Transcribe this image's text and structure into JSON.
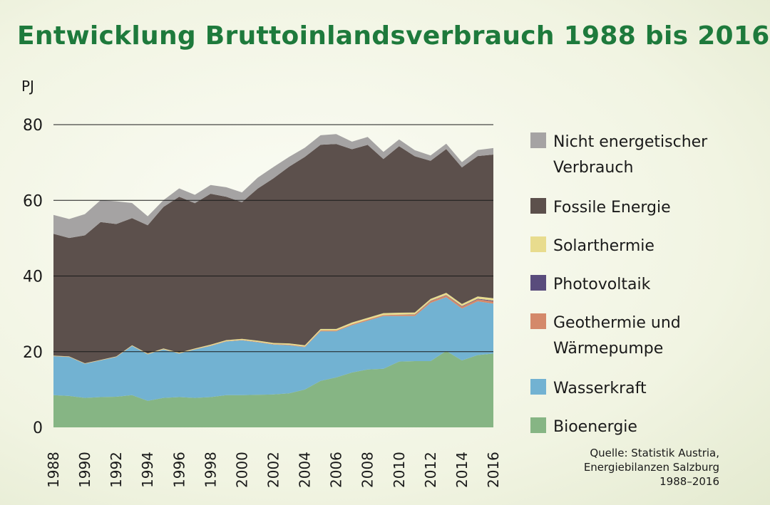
{
  "title": "Entwicklung Bruttoinlandsverbrauch 1988 bis 2016",
  "source": [
    "Quelle: Statistik Austria,",
    "Energiebilanzen Salzburg",
    "1988–2016"
  ],
  "chart_data": {
    "type": "area",
    "stacked": true,
    "ylabel": "PJ",
    "ylim": [
      0,
      80
    ],
    "yticks": [
      0,
      20,
      40,
      60,
      80
    ],
    "grid": true,
    "legend_position": "right",
    "x": [
      1988,
      1989,
      1990,
      1991,
      1992,
      1993,
      1994,
      1995,
      1996,
      1997,
      1998,
      1999,
      2000,
      2001,
      2002,
      2003,
      2004,
      2005,
      2006,
      2007,
      2008,
      2009,
      2010,
      2011,
      2012,
      2013,
      2014,
      2015,
      2016
    ],
    "xticks": [
      1988,
      1990,
      1992,
      1994,
      1996,
      1998,
      2000,
      2002,
      2004,
      2006,
      2008,
      2010,
      2012,
      2014,
      2016
    ],
    "series": [
      {
        "name": "Bioenergie",
        "color": "#86b584",
        "values": [
          8.5,
          8.3,
          7.8,
          8.0,
          8.1,
          8.5,
          7.0,
          7.8,
          8.0,
          7.8,
          8.0,
          8.5,
          8.5,
          8.6,
          8.7,
          9.0,
          10.0,
          12.3,
          13.2,
          14.5,
          15.3,
          15.5,
          17.4,
          17.5,
          17.5,
          20.2,
          17.7,
          19.1,
          19.5
        ]
      },
      {
        "name": "Wasserkraft",
        "color": "#72b2d2",
        "values": [
          10.3,
          10.3,
          9.0,
          9.7,
          10.5,
          13.0,
          12.3,
          12.8,
          11.5,
          12.8,
          13.5,
          14.2,
          14.5,
          13.9,
          13.2,
          12.7,
          11.2,
          13.1,
          12.2,
          12.5,
          12.9,
          13.9,
          12.0,
          11.9,
          15.4,
          14.2,
          13.7,
          14.2,
          13.2
        ]
      },
      {
        "name": "Geothermie und Wärmepumpe",
        "color": "#d4896a",
        "values": [
          0.05,
          0.05,
          0.05,
          0.05,
          0.05,
          0.05,
          0.05,
          0.05,
          0.05,
          0.05,
          0.1,
          0.1,
          0.1,
          0.1,
          0.1,
          0.15,
          0.15,
          0.2,
          0.2,
          0.25,
          0.3,
          0.3,
          0.35,
          0.4,
          0.45,
          0.5,
          0.5,
          0.55,
          0.6
        ]
      },
      {
        "name": "Photovoltaik",
        "color": "#594c7c",
        "values": [
          0,
          0,
          0,
          0,
          0,
          0,
          0,
          0,
          0,
          0,
          0,
          0,
          0,
          0,
          0,
          0,
          0,
          0,
          0,
          0,
          0,
          0,
          0.05,
          0.05,
          0.1,
          0.1,
          0.15,
          0.15,
          0.2
        ]
      },
      {
        "name": "Solarthermie",
        "color": "#e8dc8e",
        "values": [
          0.1,
          0.1,
          0.1,
          0.1,
          0.1,
          0.15,
          0.15,
          0.2,
          0.2,
          0.2,
          0.25,
          0.25,
          0.3,
          0.3,
          0.3,
          0.35,
          0.35,
          0.4,
          0.4,
          0.45,
          0.45,
          0.5,
          0.5,
          0.5,
          0.5,
          0.55,
          0.55,
          0.6,
          0.6
        ]
      },
      {
        "name": "Fossile Energie",
        "color": "#5c504c",
        "values": [
          32.2,
          31.3,
          33.8,
          36.4,
          35.0,
          33.6,
          33.9,
          37.4,
          41.2,
          38.4,
          39.9,
          37.9,
          36.1,
          40.2,
          43.5,
          46.7,
          49.8,
          48.7,
          48.9,
          45.8,
          45.7,
          40.7,
          44.0,
          41.3,
          36.5,
          38.0,
          36.1,
          37.1,
          38.0
        ]
      },
      {
        "name": "Nicht energetischer Verbrauch",
        "color": "#a5a3a3",
        "values": [
          5.0,
          5.0,
          5.6,
          5.8,
          6.0,
          4.0,
          2.4,
          1.8,
          2.2,
          2.2,
          2.3,
          2.5,
          2.6,
          2.9,
          3.0,
          2.6,
          2.4,
          2.5,
          2.6,
          2.0,
          2.1,
          1.9,
          1.8,
          1.6,
          1.4,
          1.4,
          1.4,
          1.6,
          1.7
        ]
      }
    ]
  }
}
